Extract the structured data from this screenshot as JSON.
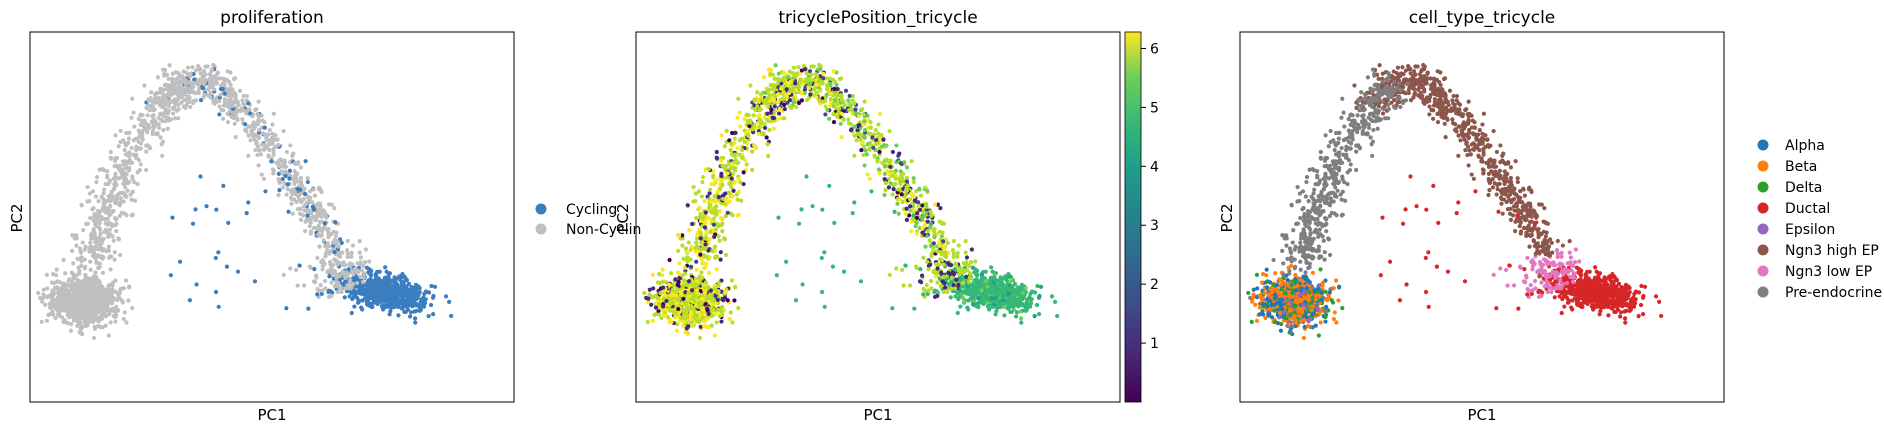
{
  "panels": [
    {
      "title": "proliferation",
      "xlabel": "PC1",
      "ylabel": "PC2"
    },
    {
      "title": "tricyclePosition_tricycle",
      "xlabel": "PC1",
      "ylabel": "PC2"
    },
    {
      "title": "cell_type_tricycle",
      "xlabel": "PC1",
      "ylabel": "PC2"
    }
  ],
  "chart_data": [
    {
      "type": "scatter",
      "title": "proliferation",
      "xlabel": "PC1",
      "ylabel": "PC2",
      "legend_position": "right",
      "series": [
        {
          "name": "Cycling",
          "color": "#3a7ebf"
        },
        {
          "name": "Non-Cycling",
          "color": "#bfbfbf"
        }
      ],
      "legend_labels_visible": [
        "Cycling",
        "Non-Cyclin"
      ]
    },
    {
      "type": "scatter",
      "title": "tricyclePosition_tricycle",
      "xlabel": "PC1",
      "ylabel": "PC2",
      "colorbar": {
        "ticks": [
          "1",
          "2",
          "3",
          "4",
          "5",
          "6"
        ],
        "range": [
          0,
          6.28
        ],
        "colormap": "viridis"
      }
    },
    {
      "type": "scatter",
      "title": "cell_type_tricycle",
      "xlabel": "PC1",
      "ylabel": "PC2",
      "legend_position": "right",
      "series": [
        {
          "name": "Alpha",
          "color": "#1f77b4"
        },
        {
          "name": "Beta",
          "color": "#ff7f0e"
        },
        {
          "name": "Delta",
          "color": "#2ca02c"
        },
        {
          "name": "Ductal",
          "color": "#d62728"
        },
        {
          "name": "Epsilon",
          "color": "#9467bd"
        },
        {
          "name": "Ngn3 high EP",
          "color": "#8c564b"
        },
        {
          "name": "Ngn3 low EP",
          "color": "#e377c2"
        },
        {
          "name": "Pre-endocrine",
          "color": "#7f7f7f"
        }
      ]
    }
  ]
}
